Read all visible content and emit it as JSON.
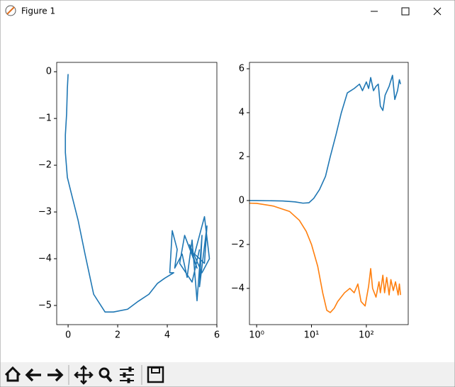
{
  "window": {
    "title": "Figure 1"
  },
  "chart_data": [
    {
      "type": "line",
      "xlim": [
        -0.46,
        6.0
      ],
      "ylim": [
        -5.41,
        0.2
      ],
      "xticks": [
        0,
        2,
        4,
        6
      ],
      "yticks": [
        {
          "value": 0,
          "label": "0"
        },
        {
          "value": -1,
          "label": "−1"
        },
        {
          "value": -2,
          "label": "−2"
        },
        {
          "value": -3,
          "label": "−3"
        },
        {
          "value": -4,
          "label": "−4"
        },
        {
          "value": -5,
          "label": "−5"
        }
      ],
      "series": [
        {
          "color": "#1f77b4",
          "x": [
            0,
            -0.03,
            -0.06,
            -0.11,
            -0.11,
            -0.03,
            0.11,
            0.4,
            0.69,
            1.03,
            1.49,
            1.83,
            2.4,
            2.83,
            3.26,
            3.6,
            3.89,
            4.26,
            4.1,
            4.2,
            4.4,
            4.3,
            4.6,
            4.8,
            5.0,
            5.2,
            5.4,
            5.3,
            5.6,
            5.5,
            5.1,
            5.5,
            5.7,
            5.4,
            4.9,
            5.2,
            4.7,
            4.5,
            5.0,
            5.3
          ],
          "values": [
            -0.05,
            -0.36,
            -0.9,
            -1.35,
            -1.73,
            -2.26,
            -2.56,
            -3.17,
            -3.92,
            -4.76,
            -5.14,
            -5.14,
            -5.08,
            -4.91,
            -4.76,
            -4.53,
            -4.42,
            -4.3,
            -4.3,
            -3.4,
            -3.8,
            -4.2,
            -3.9,
            -4.4,
            -3.6,
            -4.9,
            -3.5,
            -4.6,
            -3.3,
            -4.1,
            -3.9,
            -3.1,
            -4.0,
            -4.3,
            -3.7,
            -4.2,
            -3.5,
            -4.1,
            -4.5,
            -3.8
          ]
        }
      ]
    },
    {
      "type": "line",
      "xscale": "log",
      "xlim": [
        0.74,
        580
      ],
      "ylim": [
        -5.65,
        6.29
      ],
      "xticks": [
        {
          "value": 1,
          "label": "10⁰"
        },
        {
          "value": 10,
          "label": "10¹"
        },
        {
          "value": 100,
          "label": "10²"
        }
      ],
      "yticks": [
        6,
        4,
        2,
        0,
        {
          "value": -2,
          "label": "−2"
        },
        {
          "value": -4,
          "label": "−4"
        }
      ],
      "series": [
        {
          "color": "#1f77b4",
          "x": [
            0.74,
            1,
            3,
            5,
            7,
            9,
            11,
            14,
            18,
            22,
            28,
            35,
            45,
            60,
            75,
            85,
            100,
            110,
            120,
            135,
            150,
            165,
            180,
            200,
            220,
            260,
            300,
            330,
            370,
            400,
            420
          ],
          "values": [
            0,
            0,
            -0.02,
            -0.06,
            -0.12,
            -0.1,
            0.1,
            0.5,
            1.1,
            2,
            3,
            4,
            4.9,
            5.1,
            5.3,
            5.0,
            5.4,
            5.1,
            5.6,
            5.0,
            5.2,
            5.3,
            4.3,
            4.1,
            4.8,
            5.2,
            5.7,
            4.6,
            5.0,
            5.5,
            5.3
          ]
        },
        {
          "color": "#ff7f0e",
          "x": [
            0.74,
            1,
            2,
            4,
            6,
            8,
            10,
            13,
            16,
            19,
            22,
            26,
            30,
            40,
            50,
            60,
            70,
            80,
            95,
            110,
            120,
            130,
            150,
            170,
            180,
            200,
            215,
            235,
            260,
            280,
            310,
            340,
            380,
            400,
            420
          ],
          "values": [
            -0.12,
            -0.13,
            -0.25,
            -0.5,
            -0.9,
            -1.4,
            -2,
            -3,
            -4.2,
            -5.0,
            -5.1,
            -4.9,
            -4.6,
            -4.2,
            -4.0,
            -4.2,
            -3.8,
            -4.6,
            -4.8,
            -3.9,
            -3.1,
            -4.0,
            -4.4,
            -3.7,
            -4.2,
            -3.4,
            -4.2,
            -3.5,
            -4.3,
            -3.6,
            -4.1,
            -3.7,
            -4.3,
            -3.8,
            -4.3
          ]
        }
      ]
    }
  ]
}
